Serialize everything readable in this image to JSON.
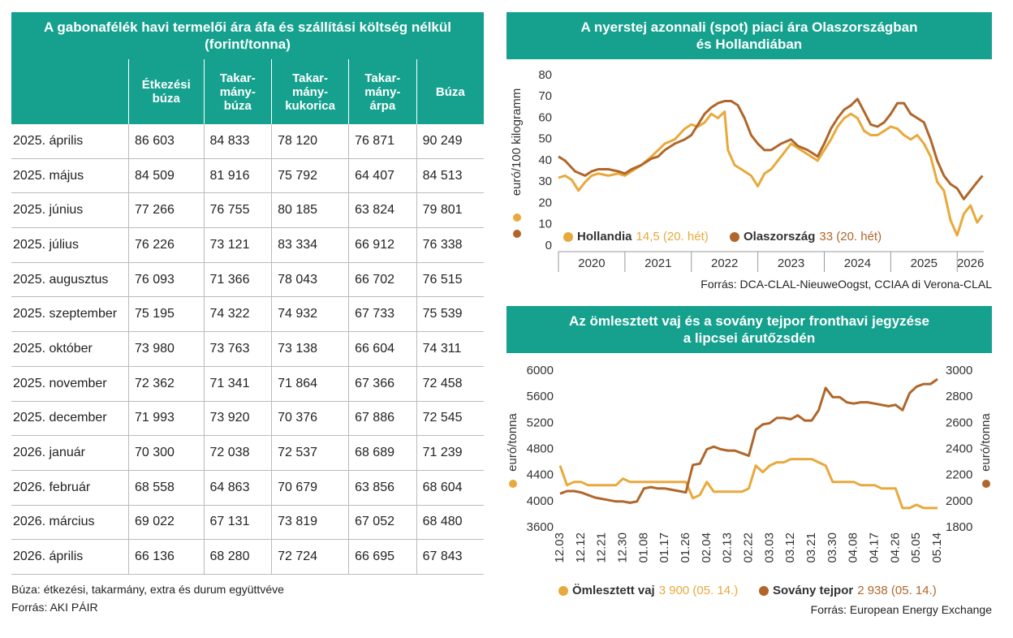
{
  "table": {
    "title": "A gabonafélék havi termelői ára áfa és szállítási költség nélkül (forint/tonna)",
    "headers": [
      "Étkezési\nbúza",
      "Takar-\nmány-\nbúza",
      "Takar-\nmány-\nkukorica",
      "Takar-\nmány-\nárpa",
      "Búza"
    ],
    "rows": [
      [
        "2025. április",
        "86 603",
        "84 833",
        "78 120",
        "76 871",
        "90 249"
      ],
      [
        "2025. május",
        "84 509",
        "81 916",
        "75 792",
        "64 407",
        "84 513"
      ],
      [
        "2025. június",
        "77 266",
        "76 755",
        "80 185",
        "63 824",
        "79 801"
      ],
      [
        "2025. július",
        "76 226",
        "73 121",
        "83 334",
        "66 912",
        "76 338"
      ],
      [
        "2025. augusztus",
        "76 093",
        "71 366",
        "78 043",
        "66 702",
        "76 515"
      ],
      [
        "2025. szeptember",
        "75 195",
        "74 322",
        "74 932",
        "67 733",
        "75 539"
      ],
      [
        "2025. október",
        "73 980",
        "73 763",
        "73 138",
        "66 604",
        "74 311"
      ],
      [
        "2025. november",
        "72 362",
        "71 341",
        "71 864",
        "67 366",
        "72 458"
      ],
      [
        "2025. december",
        "71 993",
        "73 920",
        "70 376",
        "67 886",
        "72 545"
      ],
      [
        "2026. január",
        "70 300",
        "72 038",
        "72 537",
        "68 689",
        "71 239"
      ],
      [
        "2026. február",
        "68 558",
        "64 863",
        "70 679",
        "63 856",
        "68 604"
      ],
      [
        "2026. március",
        "69 022",
        "67 131",
        "73 819",
        "67 052",
        "68 480"
      ],
      [
        "2026. április",
        "66 136",
        "68 280",
        "72 724",
        "66 695",
        "67 843"
      ]
    ],
    "notes": [
      "Búza: étkezési, takarmány, extra és durum együttvéve",
      "Forrás: AKI PÁIR"
    ]
  },
  "chart_data": [
    {
      "type": "line",
      "title": "A nyerstej azonnali (spot) piaci ára Olaszországban\nés Hollandiában",
      "y_label": "euró/100 kilogramm",
      "source": "Forrás: DCA-CLAL-NieuweOogst, CCIAA di Verona-CLAL",
      "xlim": [
        2020,
        2026.4
      ],
      "ylim": [
        0,
        80
      ],
      "yticks": [
        0,
        10,
        20,
        30,
        40,
        50,
        60,
        70,
        80
      ],
      "xticks": [
        {
          "value": 2020.5,
          "label": "2020"
        },
        {
          "value": 2021.5,
          "label": "2021"
        },
        {
          "value": 2022.5,
          "label": "2022"
        },
        {
          "value": 2023.5,
          "label": "2023"
        },
        {
          "value": 2024.5,
          "label": "2024"
        },
        {
          "value": 2025.5,
          "label": "2025"
        },
        {
          "value": 2026.2,
          "label": "2026"
        }
      ],
      "series": [
        {
          "name": "Hollandia",
          "color": "#e8a93c",
          "legend_note": "14,5 (20. hét)",
          "x": [
            2020.0,
            2020.1,
            2020.2,
            2020.3,
            2020.4,
            2020.5,
            2020.6,
            2020.75,
            2020.9,
            2021.0,
            2021.1,
            2021.25,
            2021.4,
            2021.5,
            2021.6,
            2021.75,
            2021.9,
            2022.0,
            2022.1,
            2022.2,
            2022.3,
            2022.4,
            2022.5,
            2022.55,
            2022.65,
            2022.75,
            2022.9,
            2023.0,
            2023.1,
            2023.2,
            2023.35,
            2023.5,
            2023.6,
            2023.75,
            2023.9,
            2024.0,
            2024.1,
            2024.2,
            2024.3,
            2024.4,
            2024.5,
            2024.6,
            2024.7,
            2024.8,
            2024.9,
            2025.0,
            2025.1,
            2025.2,
            2025.3,
            2025.4,
            2025.5,
            2025.6,
            2025.7,
            2025.8,
            2025.9,
            2026.0,
            2026.1,
            2026.2,
            2026.3,
            2026.38
          ],
          "values": [
            32,
            33,
            31,
            26,
            30,
            33,
            34,
            33,
            34,
            33,
            35,
            38,
            42,
            45,
            48,
            50,
            55,
            57,
            56,
            58,
            62,
            60,
            63,
            45,
            38,
            36,
            33,
            28,
            34,
            36,
            42,
            48,
            46,
            43,
            40,
            45,
            50,
            56,
            60,
            62,
            60,
            54,
            52,
            52,
            54,
            56,
            55,
            52,
            50,
            52,
            48,
            42,
            30,
            26,
            12,
            5,
            15,
            19,
            11,
            14.5
          ]
        },
        {
          "name": "Olaszország",
          "color": "#b0662a",
          "legend_note": "33 (20. hét)",
          "x": [
            2020.0,
            2020.1,
            2020.25,
            2020.4,
            2020.5,
            2020.6,
            2020.75,
            2020.9,
            2021.0,
            2021.1,
            2021.25,
            2021.4,
            2021.5,
            2021.6,
            2021.75,
            2021.9,
            2022.0,
            2022.1,
            2022.2,
            2022.3,
            2022.4,
            2022.5,
            2022.6,
            2022.7,
            2022.8,
            2022.9,
            2023.0,
            2023.1,
            2023.2,
            2023.35,
            2023.5,
            2023.6,
            2023.75,
            2023.9,
            2024.0,
            2024.1,
            2024.2,
            2024.3,
            2024.4,
            2024.5,
            2024.6,
            2024.7,
            2024.8,
            2024.9,
            2025.0,
            2025.1,
            2025.2,
            2025.3,
            2025.4,
            2025.5,
            2025.6,
            2025.7,
            2025.8,
            2025.9,
            2026.0,
            2026.1,
            2026.2,
            2026.3,
            2026.38
          ],
          "values": [
            42,
            40,
            35,
            33,
            35,
            36,
            36,
            35,
            34,
            36,
            38,
            41,
            42,
            45,
            48,
            50,
            52,
            57,
            62,
            65,
            67,
            68,
            68,
            66,
            60,
            52,
            48,
            45,
            45,
            48,
            50,
            47,
            45,
            42,
            48,
            55,
            60,
            64,
            66,
            69,
            63,
            57,
            56,
            58,
            62,
            67,
            67,
            62,
            60,
            58,
            50,
            40,
            33,
            29,
            27,
            22,
            26,
            30,
            33
          ]
        }
      ]
    },
    {
      "type": "line",
      "title": "Az ömlesztett vaj és a sovány tejpor fronthavi jegyzése\na lipcsei árutőzsdén",
      "y_label": "euró/tonna",
      "y2_label": "euró/tonna",
      "source": "Forrás: European Energy Exchange",
      "ylim": [
        3600,
        6000
      ],
      "yticks": [
        3600,
        4000,
        4400,
        4800,
        5200,
        5600,
        6000
      ],
      "y2lim": [
        1800,
        3000
      ],
      "y2ticks": [
        1800,
        2000,
        2200,
        2400,
        2600,
        2800,
        3000
      ],
      "categories": [
        "12.03",
        null,
        null,
        "12.12",
        null,
        null,
        "12.21",
        null,
        null,
        "12.30",
        null,
        null,
        "01.08",
        null,
        null,
        "01.17",
        null,
        null,
        "01.26",
        null,
        null,
        "02.04",
        null,
        null,
        "02.13",
        null,
        null,
        "02.22",
        null,
        null,
        "03.03",
        null,
        null,
        "03.12",
        null,
        null,
        "03.21",
        null,
        null,
        "03.30",
        null,
        null,
        "04.08",
        null,
        null,
        "04.17",
        null,
        null,
        "04.26",
        null,
        null,
        "05.05",
        null,
        null,
        "05.14"
      ],
      "series": [
        {
          "name": "Ömlesztett vaj",
          "color": "#e8a93c",
          "legend_note": "3 900 (05. 14.)",
          "values": [
            4550,
            4250,
            4300,
            4300,
            4250,
            4250,
            4250,
            4250,
            4250,
            4350,
            4300,
            4300,
            4300,
            4300,
            4300,
            4300,
            4300,
            4300,
            4300,
            4050,
            4100,
            4300,
            4150,
            4150,
            4150,
            4150,
            4150,
            4200,
            4550,
            4450,
            4550,
            4600,
            4600,
            4650,
            4650,
            4650,
            4650,
            4600,
            4550,
            4300,
            4300,
            4300,
            4300,
            4250,
            4250,
            4250,
            4200,
            4200,
            4200,
            3900,
            3900,
            3950,
            3900,
            3900,
            3900
          ]
        },
        {
          "name": "Sovány tejpor",
          "color": "#b0662a",
          "axis": "y2",
          "legend_note": "2 938 (05. 14.)",
          "values": [
            2060,
            2080,
            2080,
            2070,
            2050,
            2030,
            2020,
            2010,
            2000,
            2000,
            1990,
            2000,
            2100,
            2110,
            2100,
            2100,
            2090,
            2080,
            2070,
            2280,
            2290,
            2400,
            2420,
            2400,
            2390,
            2390,
            2370,
            2350,
            2550,
            2590,
            2600,
            2640,
            2640,
            2630,
            2660,
            2620,
            2620,
            2700,
            2870,
            2800,
            2800,
            2760,
            2750,
            2760,
            2760,
            2750,
            2740,
            2730,
            2740,
            2700,
            2830,
            2880,
            2900,
            2900,
            2938
          ]
        }
      ]
    }
  ]
}
